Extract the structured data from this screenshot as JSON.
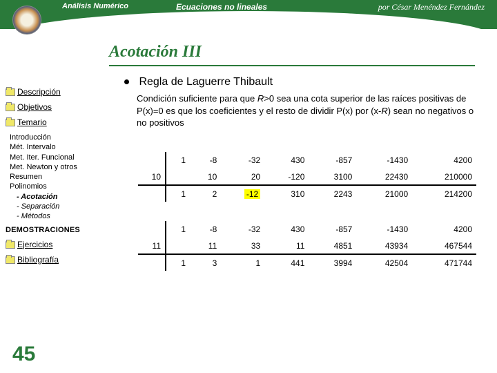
{
  "header": {
    "left": "Análisis Numérico",
    "center": "Ecuaciones no lineales",
    "right": "por César Menéndez Fernández"
  },
  "title": "Acotación III",
  "main_bullet": "Regla de Laguerre Thibault",
  "body": "Condición suficiente para que R>0 sea una cota superior de las raíces positivas de P(x)=0 es que los coeficientes y el resto de dividir P(x) por (x-R) sean no negativos o no positivos",
  "nav": {
    "descripcion": "Descripción",
    "objetivos": "Objetivos",
    "temario": "Temario",
    "ejercicios": "Ejercicios",
    "bibliografia": "Bibliografía"
  },
  "temario": {
    "items": [
      "Introducción",
      "Mét. Intervalo",
      "Met. Iter. Funcional",
      "Met. Newton y otros",
      "Resumen",
      "Polinomios"
    ],
    "subs": [
      "- Acotación",
      "- Separación",
      "- Métodos"
    ],
    "current_sub_index": 0
  },
  "demos": "DEMOSTRACIONES",
  "page": "45",
  "tables": [
    {
      "rows": [
        [
          "",
          "1",
          "-8",
          "-32",
          "430",
          "-857",
          "-1430",
          "4200"
        ],
        [
          "10",
          "",
          "10",
          "20",
          "-120",
          "3100",
          "22430",
          "210000"
        ],
        [
          "",
          "1",
          "2",
          "-12",
          "310",
          "2243",
          "21000",
          "214200"
        ]
      ],
      "highlight": {
        "row": 2,
        "col": 3
      }
    },
    {
      "rows": [
        [
          "",
          "1",
          "-8",
          "-32",
          "430",
          "-857",
          "-1430",
          "4200"
        ],
        [
          "11",
          "",
          "11",
          "33",
          "11",
          "4851",
          "43934",
          "467544"
        ],
        [
          "",
          "1",
          "3",
          "1",
          "441",
          "3994",
          "42504",
          "471744"
        ]
      ]
    }
  ],
  "colors": {
    "accent": "#2a7a3a",
    "highlight": "#ffff00"
  }
}
